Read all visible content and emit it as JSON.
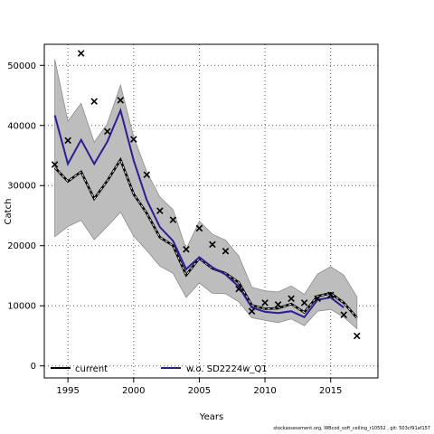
{
  "chart_data": {
    "type": "line",
    "title": "",
    "xlabel": "Years",
    "ylabel": "Catch",
    "xlim": [
      1993.2,
      2018.6
    ],
    "ylim": [
      -2000,
      53500
    ],
    "x_ticks": [
      1995,
      2000,
      2005,
      2010,
      2015
    ],
    "x_tick_labels": [
      "1995",
      "2000",
      "2005",
      "2010",
      "2015"
    ],
    "y_ticks": [
      0,
      10000,
      20000,
      30000,
      40000,
      50000
    ],
    "y_tick_labels": [
      "0",
      "10000",
      "20000",
      "30000",
      "40000",
      "50000"
    ],
    "grid": true,
    "legend_position": "bottom",
    "series": [
      {
        "name": "current",
        "color": "#000000",
        "style": "solid+dashed",
        "x": [
          1994,
          1995,
          1996,
          1997,
          1998,
          1999,
          2000,
          2001,
          2002,
          2003,
          2004,
          2005,
          2006,
          2007,
          2008,
          2009,
          2010,
          2011,
          2012,
          2013,
          2014,
          2015,
          2016,
          2017
        ],
        "values": [
          33000,
          30700,
          32300,
          27800,
          30800,
          34300,
          28600,
          25400,
          21400,
          20000,
          15100,
          17900,
          16200,
          15400,
          13900,
          10100,
          9500,
          9600,
          10300,
          8900,
          11600,
          12100,
          10500,
          8000
        ],
        "band_lower": [
          21500,
          23200,
          24200,
          21000,
          23200,
          25600,
          21600,
          19200,
          16600,
          15400,
          11400,
          13800,
          12100,
          12000,
          10700,
          8000,
          7600,
          7200,
          7800,
          6700,
          9100,
          9400,
          8100,
          6200
        ],
        "band_upper": [
          51000,
          40700,
          43700,
          37200,
          40300,
          46700,
          38100,
          32300,
          28100,
          26000,
          19400,
          24100,
          21900,
          20900,
          18300,
          13100,
          12500,
          12300,
          13300,
          11900,
          15300,
          16500,
          15100,
          11500
        ]
      },
      {
        "name": "w.o. SD2224w_Q1",
        "color": "#2a1f8f",
        "x": [
          1994,
          1995,
          1996,
          1997,
          1998,
          1999,
          2000,
          2001,
          2002,
          2003,
          2004,
          2005,
          2006,
          2007,
          2008,
          2009,
          2010,
          2011,
          2012,
          2013,
          2014,
          2015,
          2016
        ],
        "values": [
          41700,
          33600,
          37600,
          33600,
          37300,
          42500,
          34200,
          27600,
          23100,
          20800,
          16100,
          18100,
          16400,
          15200,
          13200,
          9700,
          9000,
          8800,
          9100,
          8100,
          11000,
          11400,
          9700
        ]
      },
      {
        "name": "observed",
        "marker": "x",
        "x": [
          1994,
          1995,
          1996,
          1997,
          1998,
          1999,
          2000,
          2001,
          2002,
          2003,
          2004,
          2005,
          2006,
          2007,
          2008,
          2009,
          2010,
          2011,
          2012,
          2013,
          2014,
          2015,
          2016,
          2017
        ],
        "values": [
          33500,
          37500,
          52000,
          44000,
          39000,
          44200,
          37700,
          31800,
          25800,
          24300,
          19400,
          22900,
          20200,
          19100,
          12800,
          9100,
          10500,
          10200,
          11200,
          10500,
          11200,
          11800,
          8500,
          5000
        ]
      }
    ]
  },
  "legend": {
    "current_label": "current",
    "wo_label": "w.o. SD2224w_Q1"
  },
  "footer_text": "stockassessment.org, WBcod_soft_ceiling_r10552 , git: 503cf91af157"
}
